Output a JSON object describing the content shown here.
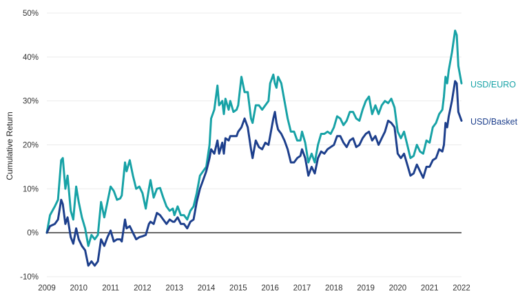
{
  "chart_data": {
    "type": "line",
    "ylabel": "Cumulative Return",
    "xlabel": "",
    "y_tick_labels": [
      "50%",
      "40%",
      "30%",
      "20%",
      "10%",
      "0%",
      "-10%"
    ],
    "y_tick_values": [
      50,
      40,
      30,
      20,
      10,
      0,
      -10
    ],
    "x_tick_labels": [
      "2009",
      "2010",
      "2011",
      "2012",
      "2013",
      "2014",
      "2015",
      "2016",
      "2017",
      "2018",
      "2019",
      "2020",
      "2021",
      "2022"
    ],
    "x_tick_values": [
      2009,
      2010,
      2011,
      2012,
      2013,
      2014,
      2015,
      2016,
      2017,
      2018,
      2019,
      2020,
      2021,
      2022
    ],
    "xlim": [
      2009,
      2022
    ],
    "ylim": [
      -10,
      50
    ],
    "grid": "horizontal-light",
    "zero_line": true,
    "legend": "inline-right",
    "series": [
      {
        "name": "USD/EURO",
        "color": "#17a2a6",
        "points": [
          [
            2009.0,
            0
          ],
          [
            2009.1,
            4
          ],
          [
            2009.25,
            6
          ],
          [
            2009.35,
            7.5
          ],
          [
            2009.45,
            16.5
          ],
          [
            2009.5,
            17
          ],
          [
            2009.58,
            10
          ],
          [
            2009.65,
            13
          ],
          [
            2009.75,
            5
          ],
          [
            2009.83,
            3
          ],
          [
            2009.92,
            10.5
          ],
          [
            2010.0,
            7
          ],
          [
            2010.1,
            3.5
          ],
          [
            2010.2,
            1
          ],
          [
            2010.3,
            -3
          ],
          [
            2010.4,
            -0.5
          ],
          [
            2010.5,
            -1.5
          ],
          [
            2010.6,
            -0.5
          ],
          [
            2010.7,
            7
          ],
          [
            2010.8,
            3.5
          ],
          [
            2010.9,
            7
          ],
          [
            2011.0,
            10.5
          ],
          [
            2011.1,
            9.5
          ],
          [
            2011.2,
            7.5
          ],
          [
            2011.3,
            7.8
          ],
          [
            2011.35,
            8.5
          ],
          [
            2011.45,
            16
          ],
          [
            2011.5,
            14
          ],
          [
            2011.6,
            16.5
          ],
          [
            2011.7,
            13
          ],
          [
            2011.8,
            10
          ],
          [
            2011.9,
            10.5
          ],
          [
            2012.0,
            9
          ],
          [
            2012.1,
            5.5
          ],
          [
            2012.2,
            10
          ],
          [
            2012.25,
            12
          ],
          [
            2012.35,
            8
          ],
          [
            2012.45,
            10
          ],
          [
            2012.55,
            10.2
          ],
          [
            2012.65,
            8
          ],
          [
            2012.75,
            6
          ],
          [
            2012.85,
            5
          ],
          [
            2012.95,
            5.5
          ],
          [
            2013.0,
            4
          ],
          [
            2013.1,
            6
          ],
          [
            2013.2,
            4
          ],
          [
            2013.3,
            4
          ],
          [
            2013.4,
            3
          ],
          [
            2013.5,
            5
          ],
          [
            2013.6,
            6
          ],
          [
            2013.7,
            9
          ],
          [
            2013.8,
            13
          ],
          [
            2013.9,
            14
          ],
          [
            2014.0,
            15
          ],
          [
            2014.1,
            20
          ],
          [
            2014.15,
            26
          ],
          [
            2014.25,
            28
          ],
          [
            2014.35,
            33.5
          ],
          [
            2014.4,
            29
          ],
          [
            2014.5,
            30
          ],
          [
            2014.55,
            27
          ],
          [
            2014.6,
            30.5
          ],
          [
            2014.7,
            28
          ],
          [
            2014.75,
            30
          ],
          [
            2014.85,
            27.5
          ],
          [
            2014.95,
            28
          ],
          [
            2015.0,
            29
          ],
          [
            2015.1,
            35.5
          ],
          [
            2015.2,
            32
          ],
          [
            2015.3,
            32
          ],
          [
            2015.4,
            26
          ],
          [
            2015.45,
            25
          ],
          [
            2015.55,
            29
          ],
          [
            2015.65,
            29
          ],
          [
            2015.75,
            28
          ],
          [
            2015.85,
            29
          ],
          [
            2015.95,
            30
          ],
          [
            2016.0,
            34
          ],
          [
            2016.1,
            36
          ],
          [
            2016.15,
            34
          ],
          [
            2016.2,
            33
          ],
          [
            2016.25,
            35.5
          ],
          [
            2016.35,
            34
          ],
          [
            2016.45,
            30
          ],
          [
            2016.55,
            26
          ],
          [
            2016.65,
            23
          ],
          [
            2016.75,
            23
          ],
          [
            2016.85,
            21
          ],
          [
            2016.95,
            21
          ],
          [
            2017.0,
            23
          ],
          [
            2017.1,
            20.5
          ],
          [
            2017.2,
            16
          ],
          [
            2017.3,
            18
          ],
          [
            2017.4,
            16
          ],
          [
            2017.5,
            20
          ],
          [
            2017.6,
            22.5
          ],
          [
            2017.7,
            22.5
          ],
          [
            2017.8,
            23
          ],
          [
            2017.9,
            22.5
          ],
          [
            2018.0,
            24
          ],
          [
            2018.1,
            26.5
          ],
          [
            2018.2,
            26
          ],
          [
            2018.3,
            24.5
          ],
          [
            2018.4,
            25.5
          ],
          [
            2018.5,
            27.5
          ],
          [
            2018.6,
            27.5
          ],
          [
            2018.7,
            26
          ],
          [
            2018.8,
            25.5
          ],
          [
            2018.9,
            28
          ],
          [
            2019.0,
            30
          ],
          [
            2019.1,
            31
          ],
          [
            2019.2,
            27
          ],
          [
            2019.3,
            29
          ],
          [
            2019.4,
            27
          ],
          [
            2019.5,
            29
          ],
          [
            2019.6,
            30
          ],
          [
            2019.7,
            29.5
          ],
          [
            2019.8,
            30.5
          ],
          [
            2019.9,
            28.5
          ],
          [
            2020.0,
            23
          ],
          [
            2020.1,
            21.5
          ],
          [
            2020.2,
            23
          ],
          [
            2020.3,
            20
          ],
          [
            2020.4,
            17
          ],
          [
            2020.5,
            17.5
          ],
          [
            2020.6,
            20
          ],
          [
            2020.7,
            18.5
          ],
          [
            2020.8,
            18
          ],
          [
            2020.9,
            21
          ],
          [
            2021.0,
            20.5
          ],
          [
            2021.1,
            24
          ],
          [
            2021.2,
            25
          ],
          [
            2021.3,
            27
          ],
          [
            2021.4,
            28
          ],
          [
            2021.45,
            31
          ],
          [
            2021.5,
            35.5
          ],
          [
            2021.55,
            34
          ],
          [
            2021.6,
            37
          ],
          [
            2021.7,
            41
          ],
          [
            2021.8,
            46
          ],
          [
            2021.85,
            45
          ],
          [
            2021.9,
            38
          ],
          [
            2021.95,
            36
          ],
          [
            2022.0,
            34
          ]
        ]
      },
      {
        "name": "USD/Basket",
        "color": "#1d3f8c",
        "points": [
          [
            2009.0,
            0
          ],
          [
            2009.1,
            1.5
          ],
          [
            2009.25,
            2
          ],
          [
            2009.35,
            3
          ],
          [
            2009.45,
            7.5
          ],
          [
            2009.5,
            6.5
          ],
          [
            2009.58,
            2
          ],
          [
            2009.65,
            3.5
          ],
          [
            2009.75,
            -1
          ],
          [
            2009.83,
            -2.5
          ],
          [
            2009.92,
            1
          ],
          [
            2010.0,
            -1.5
          ],
          [
            2010.1,
            -3
          ],
          [
            2010.2,
            -4
          ],
          [
            2010.3,
            -7.5
          ],
          [
            2010.4,
            -6.5
          ],
          [
            2010.5,
            -7.5
          ],
          [
            2010.6,
            -6.5
          ],
          [
            2010.7,
            -1.5
          ],
          [
            2010.8,
            -3
          ],
          [
            2010.9,
            -1
          ],
          [
            2011.0,
            0.5
          ],
          [
            2011.1,
            -2
          ],
          [
            2011.2,
            -1.5
          ],
          [
            2011.3,
            -1.5
          ],
          [
            2011.35,
            -2
          ],
          [
            2011.45,
            3
          ],
          [
            2011.5,
            1
          ],
          [
            2011.6,
            1.5
          ],
          [
            2011.7,
            0
          ],
          [
            2011.8,
            -1.5
          ],
          [
            2011.9,
            -1
          ],
          [
            2012.0,
            -0.8
          ],
          [
            2012.1,
            -0.5
          ],
          [
            2012.2,
            2
          ],
          [
            2012.25,
            2.5
          ],
          [
            2012.35,
            2
          ],
          [
            2012.45,
            4.5
          ],
          [
            2012.55,
            4
          ],
          [
            2012.65,
            3
          ],
          [
            2012.75,
            2
          ],
          [
            2012.85,
            3
          ],
          [
            2012.95,
            2.5
          ],
          [
            2013.0,
            2.5
          ],
          [
            2013.1,
            3.5
          ],
          [
            2013.2,
            2
          ],
          [
            2013.3,
            2
          ],
          [
            2013.4,
            1
          ],
          [
            2013.5,
            2.5
          ],
          [
            2013.6,
            3
          ],
          [
            2013.7,
            7
          ],
          [
            2013.8,
            10
          ],
          [
            2013.9,
            12
          ],
          [
            2014.0,
            14
          ],
          [
            2014.1,
            17
          ],
          [
            2014.15,
            19
          ],
          [
            2014.25,
            18
          ],
          [
            2014.35,
            21
          ],
          [
            2014.4,
            18
          ],
          [
            2014.5,
            20.5
          ],
          [
            2014.55,
            18
          ],
          [
            2014.6,
            21.5
          ],
          [
            2014.7,
            21
          ],
          [
            2014.75,
            22
          ],
          [
            2014.85,
            22
          ],
          [
            2014.95,
            22
          ],
          [
            2015.0,
            23
          ],
          [
            2015.1,
            24
          ],
          [
            2015.2,
            26
          ],
          [
            2015.3,
            24
          ],
          [
            2015.4,
            19
          ],
          [
            2015.45,
            17
          ],
          [
            2015.55,
            21
          ],
          [
            2015.65,
            19.5
          ],
          [
            2015.75,
            19
          ],
          [
            2015.85,
            20.5
          ],
          [
            2015.95,
            20
          ],
          [
            2016.0,
            22
          ],
          [
            2016.1,
            26
          ],
          [
            2016.15,
            27.5
          ],
          [
            2016.2,
            25
          ],
          [
            2016.25,
            23.5
          ],
          [
            2016.35,
            22.5
          ],
          [
            2016.45,
            21
          ],
          [
            2016.55,
            19
          ],
          [
            2016.65,
            16
          ],
          [
            2016.75,
            16
          ],
          [
            2016.85,
            17
          ],
          [
            2016.95,
            17.5
          ],
          [
            2017.0,
            19
          ],
          [
            2017.1,
            17
          ],
          [
            2017.2,
            13
          ],
          [
            2017.3,
            15
          ],
          [
            2017.4,
            13.5
          ],
          [
            2017.5,
            17
          ],
          [
            2017.6,
            18.5
          ],
          [
            2017.7,
            18
          ],
          [
            2017.8,
            19
          ],
          [
            2017.9,
            19.5
          ],
          [
            2018.0,
            20
          ],
          [
            2018.1,
            22
          ],
          [
            2018.2,
            22
          ],
          [
            2018.3,
            20.5
          ],
          [
            2018.4,
            19.5
          ],
          [
            2018.5,
            21
          ],
          [
            2018.6,
            21.5
          ],
          [
            2018.7,
            19.5
          ],
          [
            2018.8,
            20
          ],
          [
            2018.9,
            21.5
          ],
          [
            2019.0,
            22.5
          ],
          [
            2019.1,
            23
          ],
          [
            2019.2,
            21
          ],
          [
            2019.3,
            22
          ],
          [
            2019.4,
            20
          ],
          [
            2019.5,
            21.5
          ],
          [
            2019.6,
            23
          ],
          [
            2019.7,
            25.5
          ],
          [
            2019.8,
            25
          ],
          [
            2019.9,
            24
          ],
          [
            2020.0,
            18
          ],
          [
            2020.1,
            17
          ],
          [
            2020.2,
            18
          ],
          [
            2020.3,
            15.5
          ],
          [
            2020.4,
            13
          ],
          [
            2020.5,
            13.5
          ],
          [
            2020.6,
            15.5
          ],
          [
            2020.7,
            14
          ],
          [
            2020.8,
            12.5
          ],
          [
            2020.9,
            15
          ],
          [
            2021.0,
            15
          ],
          [
            2021.1,
            16.5
          ],
          [
            2021.2,
            17
          ],
          [
            2021.3,
            19
          ],
          [
            2021.4,
            18.5
          ],
          [
            2021.45,
            20
          ],
          [
            2021.5,
            25
          ],
          [
            2021.55,
            24
          ],
          [
            2021.6,
            26.5
          ],
          [
            2021.7,
            30
          ],
          [
            2021.8,
            34.5
          ],
          [
            2021.85,
            34
          ],
          [
            2021.9,
            27.5
          ],
          [
            2021.95,
            26.5
          ],
          [
            2022.0,
            25.5
          ]
        ]
      }
    ]
  }
}
